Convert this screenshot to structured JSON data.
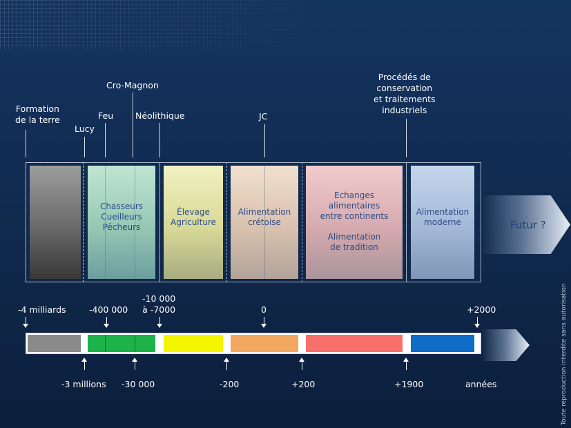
{
  "events": {
    "formation": [
      "Formation",
      "de la terre"
    ],
    "lucy": "Lucy",
    "feu": "Feu",
    "cromagnon": "Cro-Magnon",
    "neolithique": "Néolithique",
    "jc": "JC",
    "procedes": [
      "Procédés de",
      "conservation",
      "et traitements",
      "industriels"
    ]
  },
  "panels": {
    "chasseurs": [
      "Chasseurs",
      "Cueilleurs",
      "Pêcheurs"
    ],
    "elevage": [
      "Élevage",
      "Agriculture"
    ],
    "cretoise": [
      "Alimentation",
      "crétoise"
    ],
    "echanges": [
      "Echanges",
      "alimentaires",
      "entre continents"
    ],
    "tradition": [
      "Alimentation",
      "de tradition"
    ],
    "moderne": [
      "Alimentation",
      "moderne"
    ]
  },
  "futur": "Futur ?",
  "dates_top": {
    "d1": "-4 milliards",
    "d2": "-400 000",
    "d3": [
      "-10 000",
      "à -7000"
    ],
    "d4": "0",
    "d5": "+2000"
  },
  "dates_bottom": {
    "d1": "-3 millions",
    "d2": "-30 000",
    "d3": "-200",
    "d4": "+200",
    "d5": "+1900",
    "unit": "années"
  },
  "copyright": "Toute reproduction interdite sans autorisation",
  "colors": {
    "gray": "#8a8a8a",
    "green": "#1db34a",
    "yellow": "#f5f500",
    "orange": "#f2a860",
    "red": "#f86f6c",
    "blue": "#0f6cc7"
  }
}
